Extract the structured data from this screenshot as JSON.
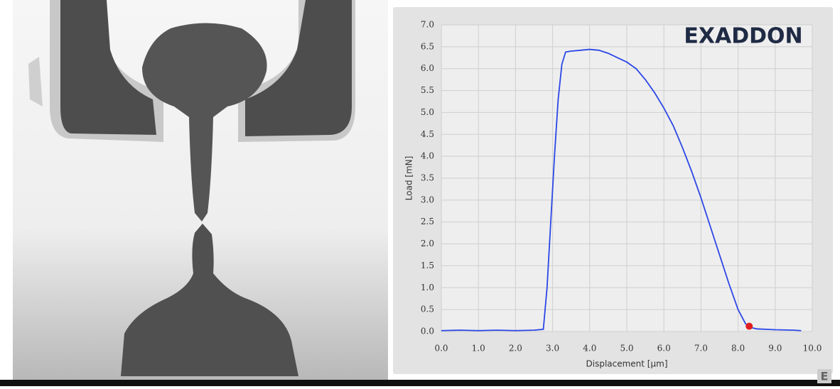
{
  "chart_data": {
    "type": "line",
    "logo": "EXADDON",
    "watermark": "E",
    "xlabel": "Displacement [µm]",
    "ylabel": "Load [mN]",
    "x": [
      0.0,
      0.5,
      1.0,
      1.5,
      2.0,
      2.5,
      2.75,
      2.85,
      2.95,
      3.05,
      3.15,
      3.25,
      3.35,
      3.5,
      3.75,
      4.0,
      4.25,
      4.5,
      4.75,
      5.0,
      5.25,
      5.5,
      5.75,
      6.0,
      6.25,
      6.5,
      6.75,
      7.0,
      7.25,
      7.5,
      7.75,
      8.0,
      8.2,
      8.3,
      8.5,
      9.0,
      9.5,
      9.7
    ],
    "series": [
      {
        "color": "#2b46e6",
        "values": [
          0.02,
          0.03,
          0.02,
          0.03,
          0.02,
          0.03,
          0.05,
          1.0,
          2.5,
          4.0,
          5.3,
          6.1,
          6.38,
          6.4,
          6.42,
          6.44,
          6.42,
          6.35,
          6.25,
          6.15,
          6.0,
          5.75,
          5.45,
          5.1,
          4.7,
          4.2,
          3.65,
          3.05,
          2.4,
          1.75,
          1.1,
          0.5,
          0.18,
          0.1,
          0.06,
          0.04,
          0.03,
          0.02
        ]
      }
    ],
    "marker": {
      "x": 8.3,
      "y": 0.12,
      "color": "#e02020"
    },
    "xlim": [
      0,
      10
    ],
    "ylim": [
      0,
      7
    ],
    "xticks": [
      {
        "value": 0,
        "label": "0.0"
      },
      {
        "value": 1,
        "label": "1.0"
      },
      {
        "value": 2,
        "label": "2.0"
      },
      {
        "value": 3,
        "label": "3.0"
      },
      {
        "value": 4,
        "label": "4.0"
      },
      {
        "value": 5,
        "label": "5.0"
      },
      {
        "value": 6,
        "label": "6.0"
      },
      {
        "value": 7,
        "label": "7.0"
      },
      {
        "value": 8,
        "label": "8.0"
      },
      {
        "value": 9,
        "label": "9.0"
      },
      {
        "value": 10,
        "label": "10.0"
      }
    ],
    "yticks": [
      {
        "value": 0,
        "label": "0.0"
      },
      {
        "value": 0.5,
        "label": "0.5"
      },
      {
        "value": 1,
        "label": "1.0"
      },
      {
        "value": 1.5,
        "label": "1.5"
      },
      {
        "value": 2,
        "label": "2.0"
      },
      {
        "value": 2.5,
        "label": "2.5"
      },
      {
        "value": 3,
        "label": "3.0"
      },
      {
        "value": 3.5,
        "label": "3.5"
      },
      {
        "value": 4,
        "label": "4.0"
      },
      {
        "value": 4.5,
        "label": "4.5"
      },
      {
        "value": 5,
        "label": "5.0"
      },
      {
        "value": 5.5,
        "label": "5.5"
      },
      {
        "value": 6,
        "label": "6.0"
      },
      {
        "value": 6.5,
        "label": "6.5"
      },
      {
        "value": 7,
        "label": "7.0"
      }
    ],
    "grid": true
  }
}
